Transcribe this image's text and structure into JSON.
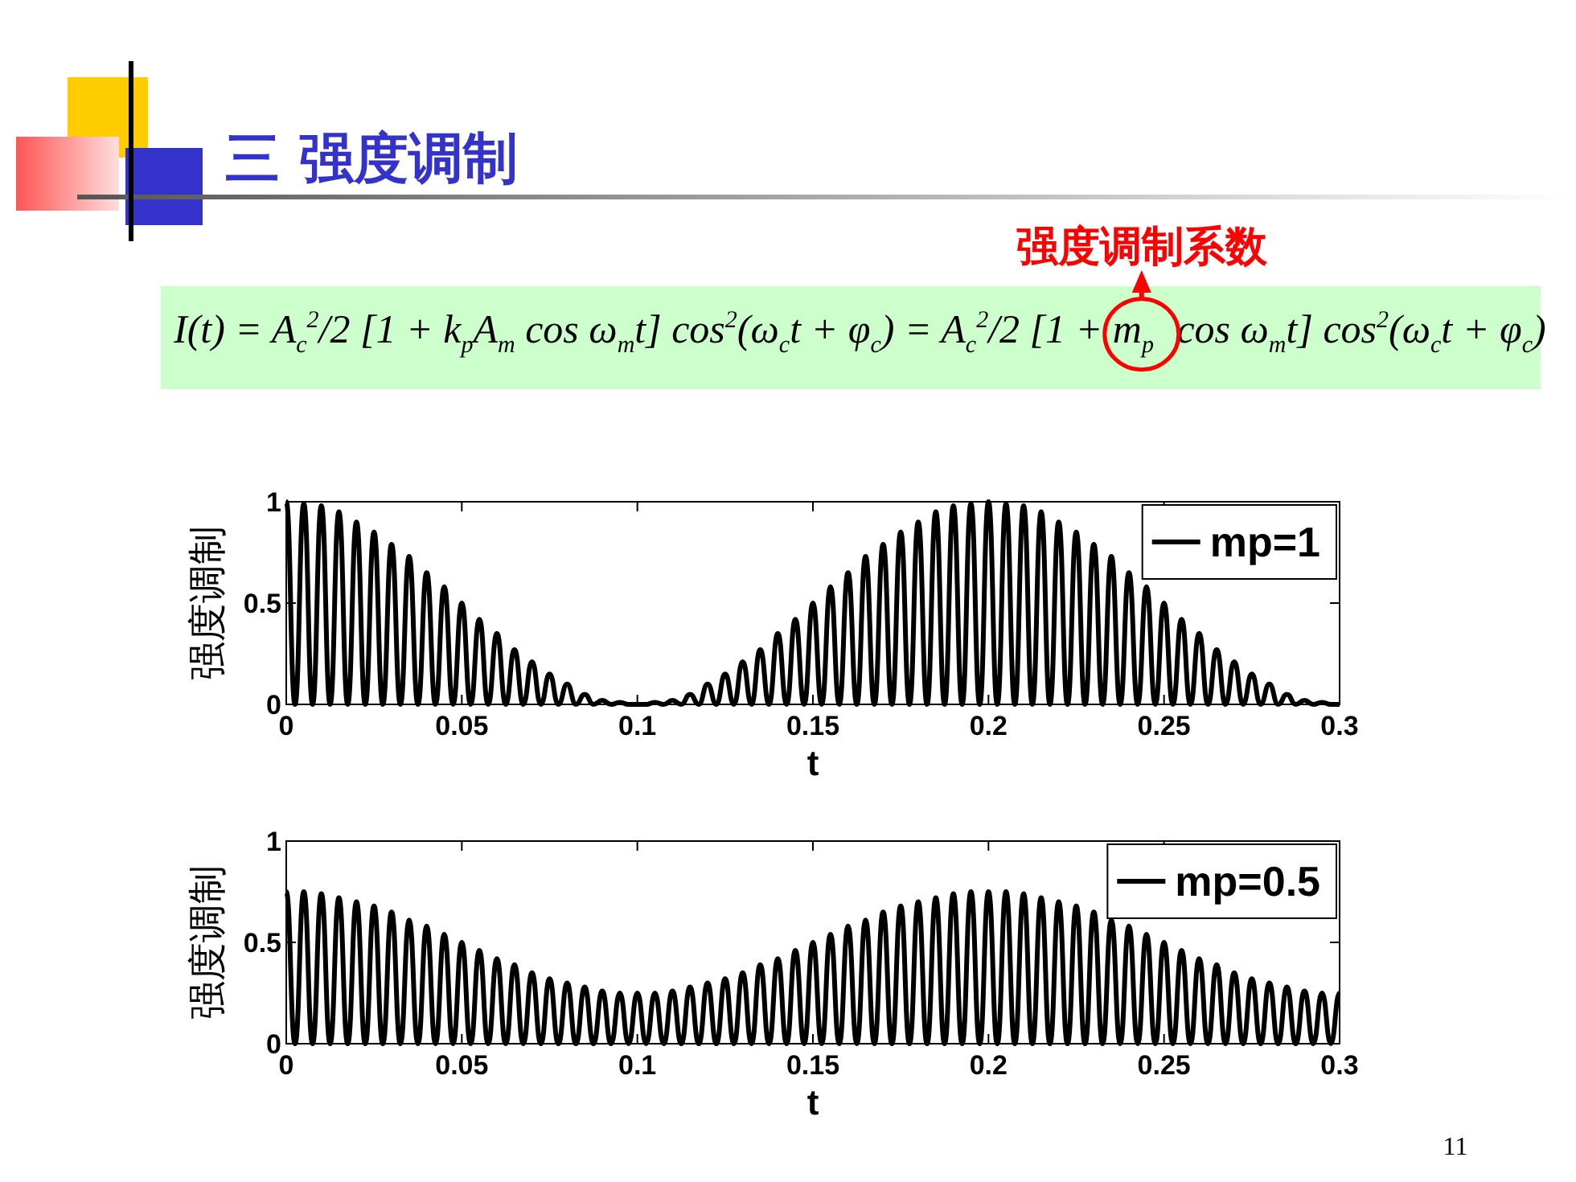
{
  "chart_data": [
    {
      "type": "line",
      "title": "三 强度调制",
      "annotations": [
        "强度调制系数",
        "I(t) = A$_{c}$$^{2}$/2 [1 + k$_{p}$A$_{m}$ cos ω$_{m}$t] cos$^{2}$(ω$_{c}$t + φ$_{c}$) = A$_{c}$$^{2}$/2 [1 +",
        "m$_{p}$ cos ω$_{m}$t] cos$^{2}$(ω$_{c}$t + φ$_{c}$)",
        "11"
      ],
      "xlabel": "t",
      "ylabel": "强度调制",
      "x": [
        0,
        0.0025,
        0.005,
        0.0075,
        0.01,
        0.0125,
        0.015,
        0.0175,
        0.02,
        0.0225,
        0.025,
        0.0275,
        0.03,
        0.0325,
        0.035,
        0.0375,
        0.04,
        0.0425,
        0.045,
        0.0475,
        0.05,
        0.0525,
        0.055,
        0.0575,
        0.06,
        0.0625,
        0.065,
        0.0675,
        0.07,
        0.0725,
        0.075,
        0.0775,
        0.08,
        0.0825,
        0.085,
        0.0875,
        0.09,
        0.0925,
        0.095,
        0.0975,
        0.1,
        0.1025,
        0.105,
        0.1075,
        0.11,
        0.1125,
        0.115,
        0.1175,
        0.12,
        0.1225,
        0.125,
        0.1275,
        0.13,
        0.1325,
        0.135,
        0.1375,
        0.14,
        0.1425,
        0.145,
        0.1475,
        0.15,
        0.1525,
        0.155,
        0.1575,
        0.16,
        0.1625,
        0.165,
        0.1675,
        0.17,
        0.1725,
        0.175,
        0.1775,
        0.18,
        0.1825,
        0.185,
        0.1875,
        0.19,
        0.1925,
        0.195,
        0.1975,
        0.2,
        0.2025,
        0.205,
        0.2075,
        0.21,
        0.2125,
        0.215,
        0.2175,
        0.22,
        0.2225,
        0.225,
        0.2275,
        0.23,
        0.2325,
        0.235,
        0.2375,
        0.24,
        0.2425,
        0.245,
        0.2475,
        0.25,
        0.2525,
        0.255,
        0.2575,
        0.26,
        0.2625,
        0.265,
        0.2675,
        0.27,
        0.2725,
        0.275,
        0.2775,
        0.28,
        0.2825,
        0.285,
        0.2875,
        0.29,
        0.2925,
        0.295,
        0.2975,
        0.3
      ],
      "series": [
        {
          "name": "mp=1",
          "color": "#000000",
          "values": [
            1,
            0,
            0.99,
            0,
            0.98,
            0,
            0.95,
            0,
            0.9,
            0,
            0.85,
            0,
            0.79,
            0,
            0.73,
            0,
            0.65,
            0,
            0.58,
            0,
            0.5,
            0,
            0.42,
            0,
            0.35,
            0,
            0.27,
            0,
            0.21,
            0,
            0.15,
            0,
            0.1,
            0,
            0.05,
            0,
            0.02,
            0,
            0.01,
            0,
            0,
            0,
            0.01,
            0,
            0.02,
            0,
            0.05,
            0,
            0.1,
            0,
            0.15,
            0,
            0.21,
            0,
            0.27,
            0,
            0.35,
            0,
            0.42,
            0,
            0.5,
            0,
            0.58,
            0,
            0.65,
            0,
            0.73,
            0,
            0.79,
            0,
            0.85,
            0,
            0.9,
            0,
            0.95,
            0,
            0.98,
            0,
            0.99,
            0,
            1,
            0,
            0.99,
            0,
            0.98,
            0,
            0.95,
            0,
            0.9,
            0,
            0.85,
            0,
            0.79,
            0,
            0.73,
            0,
            0.65,
            0,
            0.58,
            0,
            0.5,
            0,
            0.42,
            0,
            0.35,
            0,
            0.27,
            0,
            0.21,
            0,
            0.15,
            0,
            0.1,
            0,
            0.05,
            0,
            0.02,
            0,
            0.01,
            0,
            0
          ]
        }
      ],
      "xlim": [
        0,
        0.3
      ],
      "ylim": [
        0,
        1
      ],
      "xticks": [
        0,
        0.05,
        0.1,
        0.15,
        0.2,
        0.25,
        0.3
      ],
      "yticks": [
        0,
        0.5,
        1
      ],
      "legend": "top right"
    },
    {
      "type": "line",
      "xlabel": "t",
      "ylabel": "强度调制",
      "x": [
        0,
        0.0025,
        0.005,
        0.0075,
        0.01,
        0.0125,
        0.015,
        0.0175,
        0.02,
        0.0225,
        0.025,
        0.0275,
        0.03,
        0.0325,
        0.035,
        0.0375,
        0.04,
        0.0425,
        0.045,
        0.0475,
        0.05,
        0.0525,
        0.055,
        0.0575,
        0.06,
        0.0625,
        0.065,
        0.0675,
        0.07,
        0.0725,
        0.075,
        0.0775,
        0.08,
        0.0825,
        0.085,
        0.0875,
        0.09,
        0.0925,
        0.095,
        0.0975,
        0.1,
        0.1025,
        0.105,
        0.1075,
        0.11,
        0.1125,
        0.115,
        0.1175,
        0.12,
        0.1225,
        0.125,
        0.1275,
        0.13,
        0.1325,
        0.135,
        0.1375,
        0.14,
        0.1425,
        0.145,
        0.1475,
        0.15,
        0.1525,
        0.155,
        0.1575,
        0.16,
        0.1625,
        0.165,
        0.1675,
        0.17,
        0.1725,
        0.175,
        0.1775,
        0.18,
        0.1825,
        0.185,
        0.1875,
        0.19,
        0.1925,
        0.195,
        0.1975,
        0.2,
        0.2025,
        0.205,
        0.2075,
        0.21,
        0.2125,
        0.215,
        0.2175,
        0.22,
        0.2225,
        0.225,
        0.2275,
        0.23,
        0.2325,
        0.235,
        0.2375,
        0.24,
        0.2425,
        0.245,
        0.2475,
        0.25,
        0.2525,
        0.255,
        0.2575,
        0.26,
        0.2625,
        0.265,
        0.2675,
        0.27,
        0.2725,
        0.275,
        0.2775,
        0.28,
        0.2825,
        0.285,
        0.2875,
        0.29,
        0.2925,
        0.295,
        0.2975,
        0.3
      ],
      "series": [
        {
          "name": "mp=0.5",
          "color": "#000000",
          "values": [
            0.75,
            0,
            0.75,
            0,
            0.74,
            0,
            0.72,
            0,
            0.7,
            0,
            0.68,
            0,
            0.65,
            0,
            0.61,
            0,
            0.58,
            0,
            0.54,
            0,
            0.5,
            0,
            0.46,
            0,
            0.42,
            0,
            0.39,
            0,
            0.35,
            0,
            0.32,
            0,
            0.3,
            0,
            0.28,
            0,
            0.26,
            0,
            0.25,
            0,
            0.25,
            0,
            0.25,
            0,
            0.26,
            0,
            0.28,
            0,
            0.3,
            0,
            0.32,
            0,
            0.35,
            0,
            0.39,
            0,
            0.42,
            0,
            0.46,
            0,
            0.5,
            0,
            0.54,
            0,
            0.58,
            0,
            0.61,
            0,
            0.65,
            0,
            0.68,
            0,
            0.7,
            0,
            0.72,
            0,
            0.74,
            0,
            0.75,
            0,
            0.75,
            0,
            0.75,
            0,
            0.74,
            0,
            0.72,
            0,
            0.7,
            0,
            0.68,
            0,
            0.65,
            0,
            0.61,
            0,
            0.58,
            0,
            0.54,
            0,
            0.5,
            0,
            0.46,
            0,
            0.42,
            0,
            0.39,
            0,
            0.35,
            0,
            0.32,
            0,
            0.3,
            0,
            0.28,
            0,
            0.26,
            0,
            0.25,
            0,
            0.25
          ]
        }
      ],
      "xlim": [
        0,
        0.3
      ],
      "ylim": [
        0,
        1
      ],
      "xticks": [
        0,
        0.05,
        0.1,
        0.15,
        0.2,
        0.25,
        0.3
      ],
      "yticks": [
        0,
        0.5,
        1
      ],
      "legend": "top right"
    }
  ]
}
